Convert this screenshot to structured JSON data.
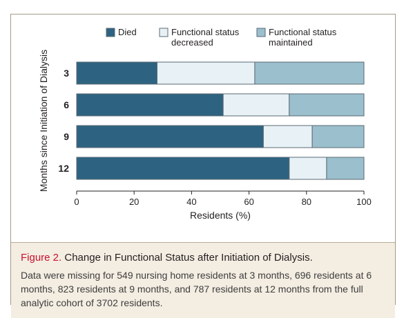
{
  "colors": {
    "died": "#2d6380",
    "decreased": "#e8f1f5",
    "maintained": "#9bbfcc",
    "bar_stroke": "#5a6a75",
    "figure_label": "#c8102e",
    "caption_bg": "#f4ede2"
  },
  "caption": {
    "label": "Figure 2.",
    "title": "Change in Functional Status after Initiation of Dialysis.",
    "body": "Data were missing for 549 nursing home residents at 3 months, 696 residents at 6 months, 823 residents at 9 months, and 787 residents at 12 months from the full analytic cohort of 3702 residents."
  },
  "chart_data": {
    "type": "bar",
    "orientation": "horizontal",
    "stacked": true,
    "categories": [
      "3",
      "6",
      "9",
      "12"
    ],
    "series": [
      {
        "name": "Died",
        "values": [
          28,
          51,
          65,
          74
        ]
      },
      {
        "name": "Functional status decreased",
        "values": [
          34,
          23,
          17,
          13
        ]
      },
      {
        "name": "Functional status maintained",
        "values": [
          38,
          26,
          18,
          13
        ]
      }
    ],
    "legend_lines": [
      [
        "Died"
      ],
      [
        "Functional status",
        "decreased"
      ],
      [
        "Functional status",
        "maintained"
      ]
    ],
    "xlabel": "Residents (%)",
    "ylabel": "Months since Initiation of Dialysis",
    "xlim": [
      0,
      100
    ],
    "xticks": [
      0,
      20,
      40,
      60,
      80,
      100
    ],
    "grid": false,
    "legend_position": "top"
  }
}
